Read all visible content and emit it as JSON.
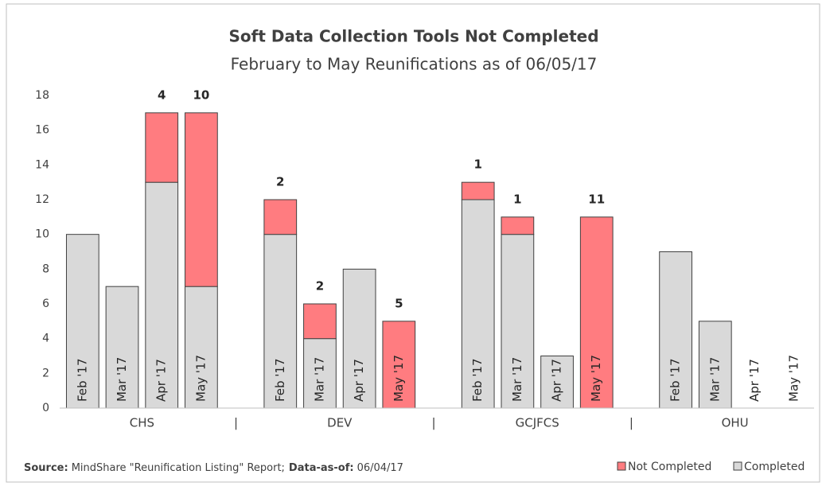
{
  "chart_data": {
    "type": "stacked_bar",
    "title": "Soft Data Collection Tools Not Completed",
    "subtitle": "February to May Reunifications as of 06/05/17",
    "groups": [
      "CHS",
      "DEV",
      "GCJFCS",
      "OHU"
    ],
    "group_separator": "|",
    "categories": [
      "Feb '17",
      "Mar '17",
      "Apr '17",
      "May '17",
      "Feb '17",
      "Mar '17",
      "Apr '17",
      "May '17",
      "Feb '17",
      "Mar '17",
      "Apr '17",
      "May '17",
      "Feb '17",
      "Mar '17",
      "Apr '17",
      "May '17"
    ],
    "series": [
      {
        "name": "Not Completed",
        "color": "#ff7c80",
        "values": [
          0,
          0,
          4,
          10,
          2,
          2,
          0,
          5,
          1,
          1,
          0,
          11,
          0,
          0,
          0,
          0
        ]
      },
      {
        "name": "Completed",
        "color": "#d9d9d9",
        "values": [
          10,
          7,
          13,
          7,
          10,
          4,
          8,
          0,
          12,
          10,
          3,
          0,
          9,
          5,
          0,
          0
        ]
      }
    ],
    "ylim": [
      0,
      18
    ],
    "yticks": [
      0,
      2,
      4,
      6,
      8,
      10,
      12,
      14,
      16,
      18
    ],
    "grid": false,
    "legend": "bottom-right",
    "source": [
      "Source:",
      "MindShare \"Reunification Listing\" Report;",
      "Data-as-of:",
      "06/04/17"
    ]
  }
}
